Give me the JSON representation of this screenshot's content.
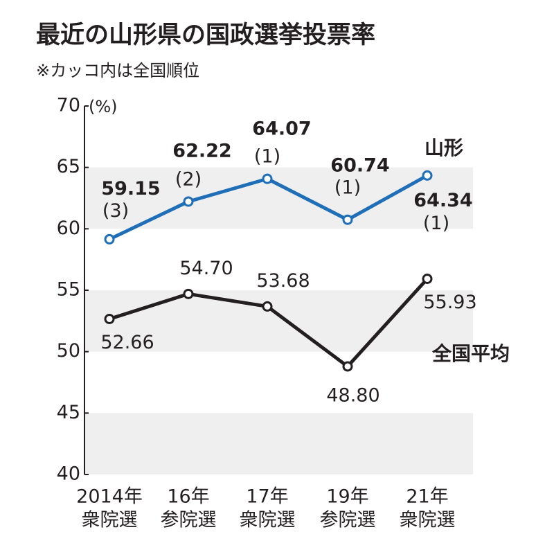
{
  "chart_data": {
    "type": "line",
    "title": "最近の山形県の国政選挙投票率",
    "subtitle": "※カッコ内は全国順位",
    "y_unit": "(%)",
    "categories": [
      "2014年",
      "16年",
      "17年",
      "19年",
      "21年"
    ],
    "category_sublabels": [
      "衆院選",
      "参院選",
      "衆院選",
      "参院選",
      "衆院選"
    ],
    "series": [
      {
        "name": "山形",
        "color": "#1f6fb8",
        "values": [
          59.15,
          62.22,
          64.07,
          60.74,
          64.34
        ],
        "ranks": [
          "(3)",
          "(2)",
          "(1)",
          "(1)",
          "(1)"
        ]
      },
      {
        "name": "全国平均",
        "color": "#231f20",
        "values": [
          52.66,
          54.7,
          53.68,
          48.8,
          55.93
        ],
        "value_labels": [
          "52.66",
          "54.70",
          "53.68",
          "48.80",
          "55.93"
        ]
      }
    ],
    "ylim": [
      40,
      70
    ],
    "yticks": [
      40,
      45,
      50,
      55,
      60,
      65,
      70
    ],
    "band_color": "#efefef"
  }
}
